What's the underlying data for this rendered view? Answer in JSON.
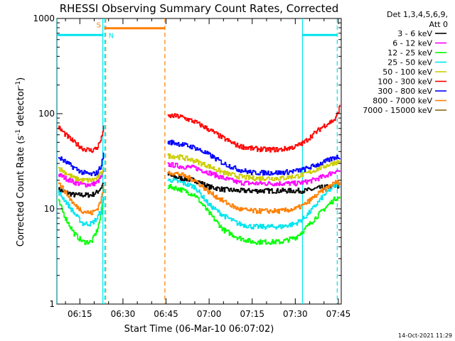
{
  "chart_data": {
    "type": "line",
    "title": "RHESSI Observing Summary Count Rates, Corrected",
    "xlabel": "Start Time (06-Mar-10 06:07:02)",
    "ylabel_prefix": "Corrected Count Rate (s",
    "ylabel_sup": "-1",
    "ylabel_mid": " detector",
    "ylabel_suffix": ")",
    "x_axis_unit": "minutes after 06:00",
    "xlim": [
      7.0,
      106.0
    ],
    "ylim": [
      1,
      1000
    ],
    "yscale": "log",
    "x_ticks": [
      {
        "x": 15,
        "label": "06:15"
      },
      {
        "x": 30,
        "label": "06:30"
      },
      {
        "x": 45,
        "label": "06:45"
      },
      {
        "x": 60,
        "label": "07:00"
      },
      {
        "x": 75,
        "label": "07:15"
      },
      {
        "x": 90,
        "label": "07:30"
      },
      {
        "x": 105,
        "label": "07:45"
      }
    ],
    "y_ticks": [
      {
        "y": 1,
        "label": "1"
      },
      {
        "y": 10,
        "label": "10"
      },
      {
        "y": 100,
        "label": "100"
      },
      {
        "y": 1000,
        "label": "1000"
      }
    ],
    "legend_header": [
      "Det 1,3,4,5,6,9,",
      "Att 0"
    ],
    "legend_placement": "right",
    "annotations": [
      {
        "label": "S",
        "color": "#ff7f00"
      },
      {
        "label": "N",
        "color": "#00e5ee"
      }
    ],
    "bars": [
      {
        "name": "S",
        "color": "#ff7f00",
        "x": [
          23.5,
          44.5
        ],
        "y": 790
      },
      {
        "name": "N",
        "color": "#00e5ee",
        "x": [
          7.0,
          23.0
        ],
        "y": 670
      },
      {
        "name": "N",
        "color": "#00e5ee",
        "x": [
          92.5,
          104.5
        ],
        "y": 670
      }
    ],
    "vlines": [
      {
        "x": 7.1,
        "color": "#00e5ee",
        "style": "solid"
      },
      {
        "x": 23.0,
        "color": "#00e5ee",
        "style": "solid"
      },
      {
        "x": 23.6,
        "color": "#00e5ee",
        "style": "dashed"
      },
      {
        "x": 24.0,
        "color": "#ff7f00",
        "style": "dashed"
      },
      {
        "x": 44.6,
        "color": "#ff7f00",
        "style": "dashed"
      },
      {
        "x": 92.5,
        "color": "#00e5ee",
        "style": "solid"
      },
      {
        "x": 104.6,
        "color": "#00e5ee",
        "style": "dashed"
      }
    ],
    "series": [
      {
        "name": "3 - 6 keV",
        "color": "#000000",
        "segments": [
          {
            "x": [
              7.5,
              10,
              13,
              16,
              19,
              21,
              22.5,
              23.2
            ],
            "y": [
              16,
              15,
              14,
              14,
              14,
              15,
              17,
              19
            ]
          },
          {
            "x": [
              45.5,
              47,
              50,
              55,
              60,
              65,
              70,
              75,
              80,
              85,
              90,
              93,
              96,
              100,
              104,
              105.5
            ],
            "y": [
              23,
              22,
              21,
              20,
              17,
              16,
              15.5,
              15.5,
              15.5,
              15.5,
              15.5,
              15.5,
              16,
              17,
              17,
              17
            ]
          }
        ]
      },
      {
        "name": "6 - 12 keV",
        "color": "#ff00ff",
        "segments": [
          {
            "x": [
              7.5,
              10,
              13,
              16,
              19,
              21,
              22.5,
              23.2
            ],
            "y": [
              23,
              21,
              19,
              18,
              18,
              19,
              22,
              25
            ]
          },
          {
            "x": [
              45.5,
              47,
              50,
              55,
              60,
              65,
              70,
              75,
              80,
              85,
              90,
              93,
              96,
              100,
              104,
              105.5
            ],
            "y": [
              29,
              29,
              28,
              27,
              24,
              21,
              19,
              18.5,
              18.5,
              18.5,
              18.5,
              19,
              20,
              22,
              25,
              25
            ]
          }
        ]
      },
      {
        "name": "12 - 25 keV",
        "color": "#00ff00",
        "segments": [
          {
            "x": [
              7.5,
              10,
              13,
              16,
              19,
              21,
              22.5,
              23.2
            ],
            "y": [
              12,
              8,
              5.5,
              4.5,
              4.5,
              6,
              9,
              13
            ]
          },
          {
            "x": [
              45.5,
              47,
              50,
              55,
              60,
              65,
              70,
              75,
              80,
              85,
              90,
              93,
              96,
              100,
              104,
              105.5
            ],
            "y": [
              17,
              17,
              16,
              14,
              9,
              6,
              5,
              4.5,
              4.5,
              4.5,
              5,
              6,
              7.5,
              10,
              13,
              13
            ]
          }
        ]
      },
      {
        "name": "25 - 50 keV",
        "color": "#00e5ee",
        "segments": [
          {
            "x": [
              7.5,
              10,
              13,
              16,
              19,
              21,
              22.5,
              23.2
            ],
            "y": [
              15,
              12,
              9,
              7,
              7,
              8,
              10,
              14
            ]
          },
          {
            "x": [
              45.5,
              47,
              50,
              55,
              60,
              65,
              70,
              75,
              80,
              85,
              90,
              93,
              96,
              100,
              104,
              105.5
            ],
            "y": [
              20,
              20,
              19,
              17,
              11,
              8.5,
              7,
              6.5,
              6.5,
              6.5,
              7,
              8,
              10,
              14,
              18,
              18
            ]
          }
        ]
      },
      {
        "name": "50 - 100 keV",
        "color": "#cccc00",
        "segments": [
          {
            "x": [
              7.5,
              10,
              13,
              16,
              19,
              21,
              22.5,
              23.2
            ],
            "y": [
              27,
              24,
              21,
              20,
              20,
              21,
              24,
              28
            ]
          },
          {
            "x": [
              45.5,
              47,
              50,
              55,
              60,
              65,
              70,
              75,
              80,
              85,
              90,
              93,
              96,
              100,
              104,
              105.5
            ],
            "y": [
              36,
              36,
              35,
              32,
              28,
              24,
              22,
              21,
              21,
              21,
              22,
              23,
              25,
              28,
              31,
              31
            ]
          }
        ]
      },
      {
        "name": "100 - 300 keV",
        "color": "#ff0000",
        "segments": [
          {
            "x": [
              7.5,
              10,
              13,
              16,
              19,
              21,
              22.5,
              23.2
            ],
            "y": [
              72,
              60,
              50,
              43,
              41,
              44,
              55,
              75
            ]
          },
          {
            "x": [
              45.5,
              47,
              50,
              55,
              60,
              65,
              70,
              75,
              80,
              85,
              90,
              93,
              96,
              100,
              104,
              105.5
            ],
            "y": [
              92,
              95,
              93,
              82,
              68,
              55,
              46,
              43,
              42,
              42,
              45,
              50,
              60,
              75,
              88,
              120
            ]
          }
        ]
      },
      {
        "name": "300 - 800 keV",
        "color": "#0000ff",
        "segments": [
          {
            "x": [
              7.5,
              10,
              13,
              16,
              19,
              21,
              22.5,
              23.2
            ],
            "y": [
              35,
              31,
              27,
              24,
              23,
              24,
              29,
              38
            ]
          },
          {
            "x": [
              45.5,
              47,
              50,
              55,
              60,
              65,
              70,
              75,
              80,
              85,
              90,
              93,
              96,
              100,
              104,
              105.5
            ],
            "y": [
              50,
              50,
              48,
              44,
              37,
              30,
              26,
              24,
              24,
              24,
              25,
              26,
              28,
              31,
              35,
              35
            ]
          }
        ]
      },
      {
        "name": "800 - 7000 keV",
        "color": "#ff7f00",
        "segments": [
          {
            "x": [
              7.5,
              10,
              13,
              16,
              19,
              21,
              22.5,
              23.2
            ],
            "y": [
              19,
              15,
              11,
              9.5,
              9,
              10,
              13,
              17
            ]
          },
          {
            "x": [
              45.5,
              47,
              50,
              55,
              60,
              65,
              70,
              75,
              80,
              85,
              90,
              93,
              96,
              100,
              104,
              105.5
            ],
            "y": [
              24,
              24,
              23,
              20,
              15,
              12,
              10,
              9.5,
              9.5,
              9.5,
              10,
              11,
              13,
              16,
              19,
              19
            ]
          }
        ]
      },
      {
        "name": "7000 - 15000 keV",
        "color": "#8b6914",
        "segments": []
      }
    ]
  },
  "footer": {
    "timestamp": "14-Oct-2021 11:29"
  }
}
